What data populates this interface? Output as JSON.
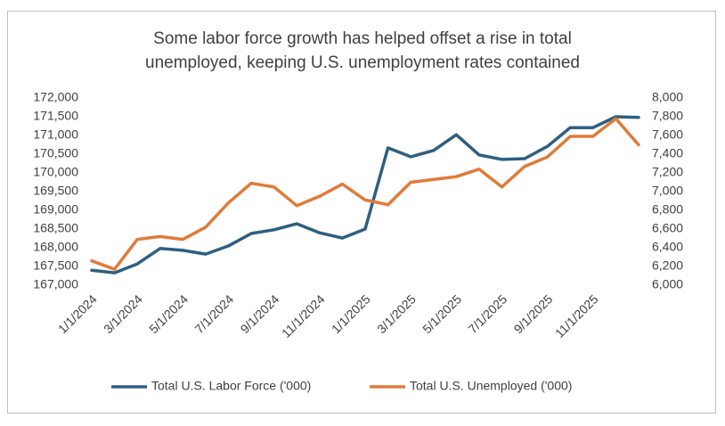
{
  "chart_data": {
    "type": "line",
    "title": "Some labor force growth has helped offset a rise in total unemployed, keeping U.S. unemployment rates contained",
    "categories": [
      "1/1/2024",
      null,
      "3/1/2024",
      null,
      "5/1/2024",
      null,
      "7/1/2024",
      null,
      "9/1/2024",
      null,
      "11/1/2024",
      null,
      "1/1/2025",
      null,
      "3/1/2025",
      null,
      "5/1/2025",
      null,
      "7/1/2025",
      null,
      "9/1/2025",
      null,
      "11/1/2025",
      null,
      null
    ],
    "series": [
      {
        "name": "Total U.S. Labor Force ('000)",
        "color": "#2e5f80",
        "values": [
          167400,
          167330,
          167570,
          167980,
          167930,
          167830,
          168050,
          168380,
          168480,
          168640,
          168400,
          168260,
          168500,
          170670,
          170430,
          170600,
          171020,
          170480,
          170360,
          170380,
          170710,
          171210,
          171210,
          171500,
          171480
        ]
      },
      {
        "name": "Total U.S. Unemployed ('000)",
        "color": "#e07b39",
        "axis": "y2",
        "values": [
          6260,
          6170,
          6490,
          6520,
          6490,
          6620,
          6880,
          7090,
          7050,
          6850,
          6950,
          7080,
          6910,
          6860,
          7100,
          7130,
          7160,
          7240,
          7050,
          7270,
          7370,
          7590,
          7590,
          7780,
          7500
        ]
      }
    ],
    "ylim": [
      167000,
      172000
    ],
    "yticks": [
      {
        "value": 167000,
        "label": "167,000"
      },
      {
        "value": 167500,
        "label": "167,500"
      },
      {
        "value": 168000,
        "label": "168,000"
      },
      {
        "value": 168500,
        "label": "168,500"
      },
      {
        "value": 169000,
        "label": "169,000"
      },
      {
        "value": 169500,
        "label": "169,500"
      },
      {
        "value": 170000,
        "label": "170,000"
      },
      {
        "value": 170500,
        "label": "170,500"
      },
      {
        "value": 171000,
        "label": "171,000"
      },
      {
        "value": 171500,
        "label": "171,500"
      },
      {
        "value": 172000,
        "label": "172,000"
      }
    ],
    "y2lim": [
      6000,
      8000
    ],
    "y2ticks": [
      {
        "value": 6000,
        "label": "6,000"
      },
      {
        "value": 6200,
        "label": "6,200"
      },
      {
        "value": 6400,
        "label": "6,400"
      },
      {
        "value": 6600,
        "label": "6,600"
      },
      {
        "value": 6800,
        "label": "6,800"
      },
      {
        "value": 7000,
        "label": "7,000"
      },
      {
        "value": 7200,
        "label": "7,200"
      },
      {
        "value": 7400,
        "label": "7,400"
      },
      {
        "value": 7600,
        "label": "7,600"
      },
      {
        "value": 7800,
        "label": "7,800"
      },
      {
        "value": 8000,
        "label": "8,000"
      }
    ],
    "grid": false,
    "legend": "bottom"
  }
}
